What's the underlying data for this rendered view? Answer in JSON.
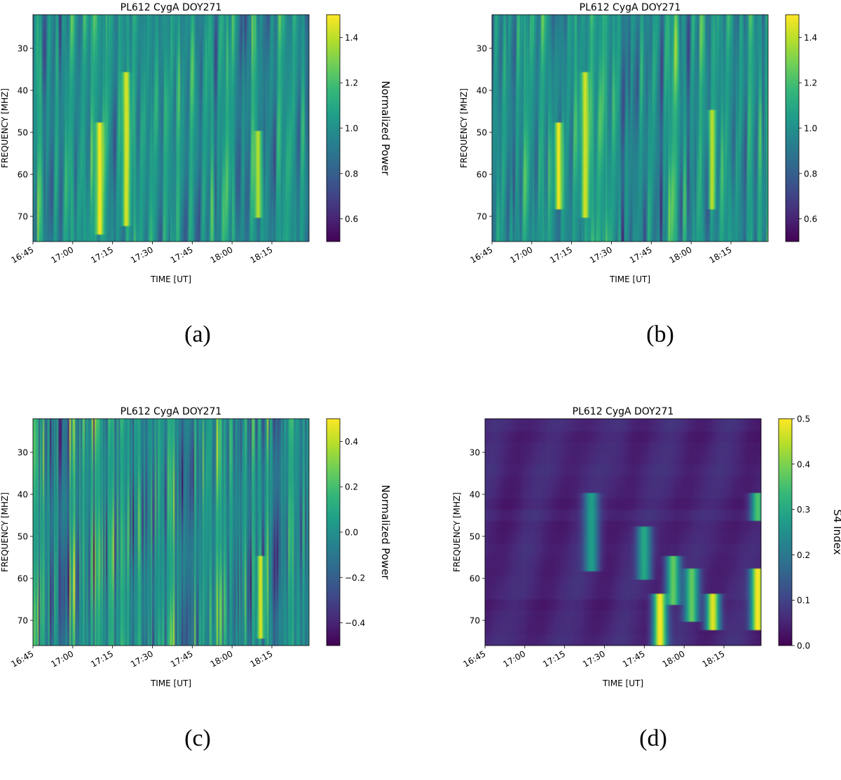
{
  "figure": {
    "panels": [
      {
        "id": "a",
        "caption": "(a)"
      },
      {
        "id": "b",
        "caption": "(b)"
      },
      {
        "id": "c",
        "caption": "(c)"
      },
      {
        "id": "d",
        "caption": "(d)"
      }
    ]
  },
  "chart_data": [
    {
      "type": "heatmap",
      "panel": "a",
      "title": "PL612 CygA DOY271",
      "xlabel": "TIME [UT]",
      "ylabel": "FREQUENCY [MHZ]",
      "colorbar_label": "Normalized Power",
      "colormap": "viridis",
      "xlim": [
        "16:45",
        "18:29"
      ],
      "x_ticks": [
        "16:45",
        "17:00",
        "17:15",
        "17:30",
        "17:45",
        "18:00",
        "18:15"
      ],
      "ylim": [
        76,
        22
      ],
      "y_ticks": [
        30,
        40,
        50,
        60,
        70
      ],
      "clim": [
        0.5,
        1.5
      ],
      "colorbar_ticks": [
        "0.6",
        "0.8",
        "1.0",
        "1.2",
        "1.4"
      ],
      "pattern": "striations",
      "bright_features": [
        {
          "t": "17:10",
          "f_from": 48,
          "f_to": 74,
          "value": 1.5
        },
        {
          "t": "17:20",
          "f_from": 36,
          "f_to": 72,
          "value": 1.45
        },
        {
          "t": "18:10",
          "f_from": 50,
          "f_to": 70,
          "value": 1.4
        }
      ]
    },
    {
      "type": "heatmap",
      "panel": "b",
      "title": "PL612 CygA DOY271",
      "xlabel": "TIME [UT]",
      "ylabel": "FREQUENCY [MHZ]",
      "colorbar_label": "Normalized Power",
      "colormap": "viridis",
      "xlim": [
        "16:45",
        "18:29"
      ],
      "x_ticks": [
        "16:45",
        "17:00",
        "17:15",
        "17:30",
        "17:45",
        "18:00",
        "18:15"
      ],
      "ylim": [
        76,
        22
      ],
      "y_ticks": [
        30,
        40,
        50,
        60,
        70
      ],
      "clim": [
        0.5,
        1.5
      ],
      "colorbar_ticks": [
        "0.6",
        "0.8",
        "1.0",
        "1.2",
        "1.4"
      ],
      "pattern": "striations",
      "bright_features": [
        {
          "t": "17:10",
          "f_from": 48,
          "f_to": 68,
          "value": 1.5
        },
        {
          "t": "17:20",
          "f_from": 36,
          "f_to": 70,
          "value": 1.45
        },
        {
          "t": "18:08",
          "f_from": 45,
          "f_to": 68,
          "value": 1.4
        }
      ]
    },
    {
      "type": "heatmap",
      "panel": "c",
      "title": "PL612 CygA DOY271",
      "xlabel": "TIME [UT]",
      "ylabel": "FREQUENCY [MHZ]",
      "colorbar_label": "Normalized Power",
      "colormap": "viridis",
      "xlim": [
        "16:45",
        "18:29"
      ],
      "x_ticks": [
        "16:45",
        "17:00",
        "17:15",
        "17:30",
        "17:45",
        "18:00",
        "18:15"
      ],
      "ylim": [
        76,
        22
      ],
      "y_ticks": [
        30,
        40,
        50,
        60,
        70
      ],
      "clim": [
        -0.5,
        0.5
      ],
      "colorbar_ticks": [
        "−0.4",
        "−0.2",
        "0.0",
        "0.2",
        "0.4"
      ],
      "pattern": "fine",
      "bright_features": [
        {
          "t": "18:11",
          "f_from": 55,
          "f_to": 74,
          "value": 0.45
        }
      ]
    },
    {
      "type": "heatmap",
      "panel": "d",
      "title": "PL612 CygA DOY271",
      "xlabel": "TIME [UT]",
      "ylabel": "FREQUENCY [MHZ]",
      "colorbar_label": "S4 Index",
      "colormap": "viridis",
      "xlim": [
        "16:45",
        "18:29"
      ],
      "x_ticks": [
        "16:45",
        "17:00",
        "17:15",
        "17:30",
        "17:45",
        "18:00",
        "18:15"
      ],
      "ylim": [
        76,
        22
      ],
      "y_ticks": [
        30,
        40,
        50,
        60,
        70
      ],
      "clim": [
        0.0,
        0.5
      ],
      "colorbar_ticks": [
        "0.0",
        "0.1",
        "0.2",
        "0.3",
        "0.4",
        "0.5"
      ],
      "pattern": "smooth",
      "bright_features": [
        {
          "t": "17:51",
          "f_from": 64,
          "f_to": 76,
          "value": 0.5
        },
        {
          "t": "17:56",
          "f_from": 55,
          "f_to": 66,
          "value": 0.38
        },
        {
          "t": "18:03",
          "f_from": 58,
          "f_to": 70,
          "value": 0.38
        },
        {
          "t": "18:11",
          "f_from": 64,
          "f_to": 72,
          "value": 0.48
        },
        {
          "t": "18:28",
          "f_from": 58,
          "f_to": 72,
          "value": 0.5
        },
        {
          "t": "18:28",
          "f_from": 40,
          "f_to": 46,
          "value": 0.36
        },
        {
          "t": "17:25",
          "f_from": 40,
          "f_to": 58,
          "value": 0.28
        },
        {
          "t": "17:45",
          "f_from": 48,
          "f_to": 60,
          "value": 0.3
        }
      ]
    }
  ]
}
